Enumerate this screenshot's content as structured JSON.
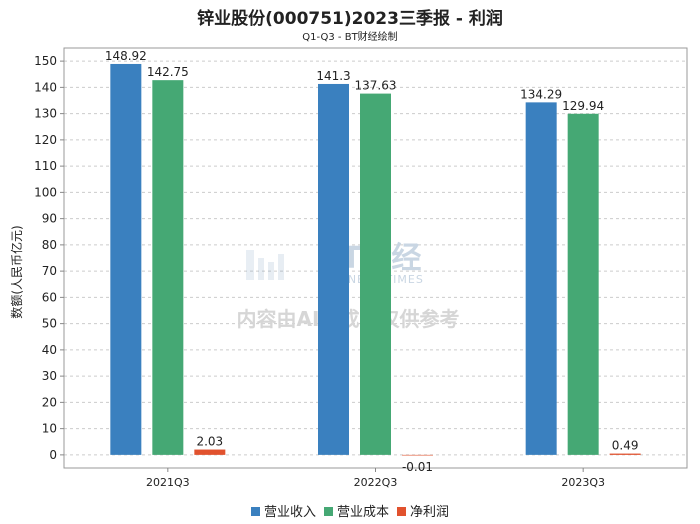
{
  "chart_data": {
    "type": "bar",
    "title": "锌业股份(000751)2023三季报 - 利润",
    "subtitle": "Q1-Q3 - BT财经绘制",
    "xlabel": "",
    "ylabel": "数额(人民币亿元)",
    "ylim": [
      -5,
      155
    ],
    "yticks": [
      0,
      10,
      20,
      30,
      40,
      50,
      60,
      70,
      80,
      90,
      100,
      110,
      120,
      130,
      140,
      150
    ],
    "grid": true,
    "legend_position": "bottom",
    "categories": [
      "2021Q3",
      "2022Q3",
      "2023Q3"
    ],
    "series": [
      {
        "name": "营业收入",
        "color": "#3a80bf",
        "values": [
          148.92,
          141.3,
          134.29
        ],
        "labels": [
          "148.92",
          "141.3",
          "134.29"
        ]
      },
      {
        "name": "营业成本",
        "color": "#45a874",
        "values": [
          142.75,
          137.63,
          129.94
        ],
        "labels": [
          "142.75",
          "137.63",
          "129.94"
        ]
      },
      {
        "name": "净利润",
        "color": "#e1522e",
        "values": [
          2.03,
          -0.01,
          0.49
        ],
        "labels": [
          "2.03",
          "-0.01",
          "0.49"
        ]
      }
    ]
  },
  "watermark": {
    "brand": "BT财经",
    "brand_en": "BUSINESS TIMES",
    "notice": "内容由AI生成，仅供参考"
  }
}
